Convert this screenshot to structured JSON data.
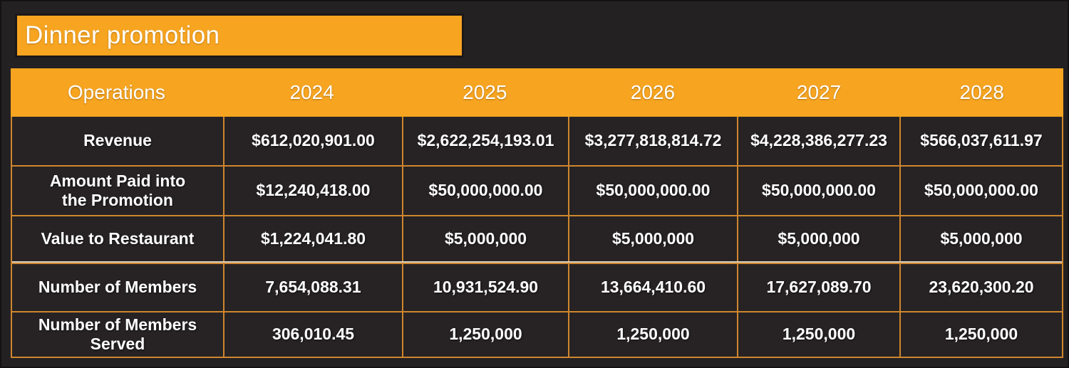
{
  "title": "Dinner promotion",
  "colors": {
    "accent": "#F7A521",
    "grid": "#CE862E",
    "bg": "#242122",
    "cell": "#272324",
    "text": "#FFFFFF",
    "divider-light": "#D8D1C2"
  },
  "table": {
    "columns": [
      "Operations",
      "2024",
      "2025",
      "2026",
      "2027",
      "2028"
    ],
    "rows": [
      {
        "label": "Revenue",
        "values": [
          "$612,020,901.00",
          "$2,622,254,193.01",
          "$3,277,818,814.72",
          "$4,228,386,277.23",
          "$566,037,611.97"
        ]
      },
      {
        "label": "Amount Paid into\nthe Promotion",
        "values": [
          "$12,240,418.00",
          "$50,000,000.00",
          "$50,000,000.00",
          "$50,000,000.00",
          "$50,000,000.00"
        ]
      },
      {
        "label": "Value to Restaurant",
        "values": [
          "$1,224,041.80",
          "$5,000,000",
          "$5,000,000",
          "$5,000,000",
          "$5,000,000"
        ]
      },
      {
        "label": "Number of Members",
        "values": [
          "7,654,088.31",
          "10,931,524.90",
          "13,664,410.60",
          "17,627,089.70",
          "23,620,300.20"
        ]
      },
      {
        "label": "Number of Members\nServed",
        "values": [
          "306,010.45",
          "1,250,000",
          "1,250,000",
          "1,250,000",
          "1,250,000"
        ]
      }
    ]
  }
}
